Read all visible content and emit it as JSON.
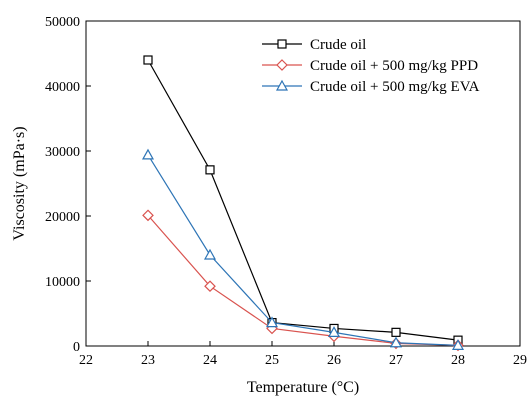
{
  "chart_data": {
    "type": "line",
    "title": "",
    "xlabel": "Temperature (°C)",
    "ylabel": "Viscosity (mPa·s)",
    "xlim": [
      22,
      29
    ],
    "ylim": [
      0,
      50000
    ],
    "x_ticks": [
      22,
      23,
      24,
      25,
      26,
      27,
      28,
      29
    ],
    "y_ticks": [
      0,
      10000,
      20000,
      30000,
      40000,
      50000
    ],
    "x": [
      23,
      24,
      25,
      26,
      27,
      28
    ],
    "grid": false,
    "legend_position": "top-right",
    "series": [
      {
        "name": "Crude oil",
        "color": "#000000",
        "marker": "square",
        "values": [
          44000,
          27100,
          3600,
          2700,
          2100,
          900
        ]
      },
      {
        "name": "Crude oil + 500 mg/kg PPD",
        "color": "#d9534f",
        "marker": "diamond",
        "values": [
          20100,
          9200,
          2700,
          1500,
          400,
          100
        ]
      },
      {
        "name": "Crude oil + 500 mg/kg EVA",
        "color": "#2e75b6",
        "marker": "triangle",
        "values": [
          29400,
          14000,
          3600,
          2100,
          500,
          100
        ]
      }
    ]
  }
}
